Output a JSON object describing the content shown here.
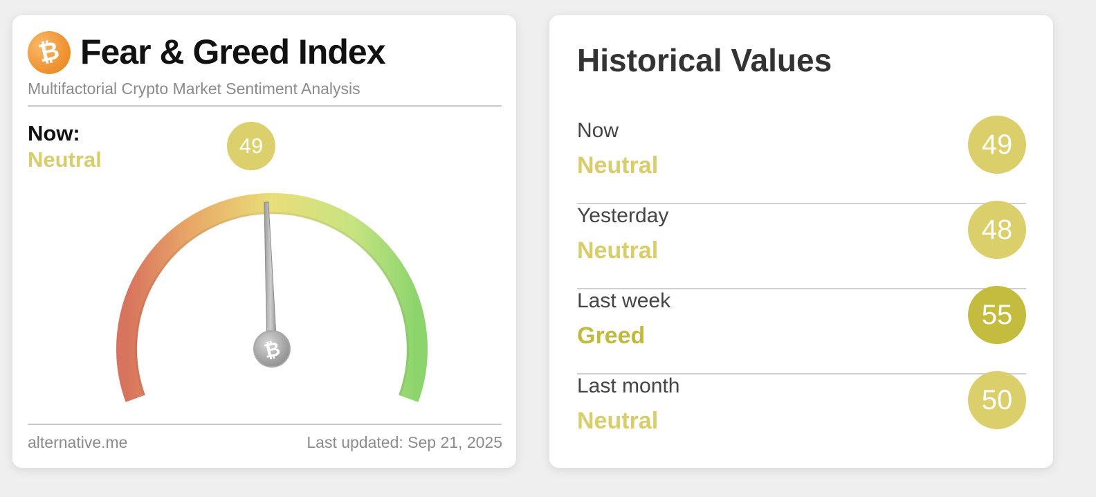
{
  "widget": {
    "title": "Fear & Greed Index",
    "subtitle": "Multifactorial Crypto Market Sentiment Analysis",
    "logo_icon": "bitcoin-icon",
    "now_label": "Now:",
    "now_classification": "Neutral",
    "now_value": "49",
    "gauge": {
      "value": 49,
      "min": 0,
      "max": 100,
      "needle_cap_icon": "bitcoin-icon"
    },
    "footer_source": "alternative.me",
    "footer_updated": "Last updated: Sep 21, 2025"
  },
  "historical": {
    "title": "Historical Values",
    "rows": [
      {
        "period": "Now",
        "classification": "Neutral",
        "value": "49",
        "color": "#dbcf6c",
        "text_color": "#d9cd6a"
      },
      {
        "period": "Yesterday",
        "classification": "Neutral",
        "value": "48",
        "color": "#dbcf6c",
        "text_color": "#d9cd6a"
      },
      {
        "period": "Last week",
        "classification": "Greed",
        "value": "55",
        "color": "#c4bc3f",
        "text_color": "#c2b93f"
      },
      {
        "period": "Last month",
        "classification": "Neutral",
        "value": "50",
        "color": "#dbcf6c",
        "text_color": "#d9cd6a"
      }
    ]
  },
  "colors": {
    "neutral": "#d9cd6a",
    "greed": "#c2b93f",
    "gauge_fear": "#d56c55",
    "gauge_mid": "#e8dc72",
    "gauge_greed": "#86d266"
  }
}
